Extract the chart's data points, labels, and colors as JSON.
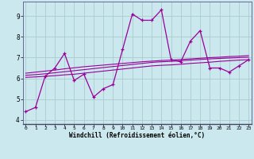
{
  "x": [
    0,
    1,
    2,
    3,
    4,
    5,
    6,
    7,
    8,
    9,
    10,
    11,
    12,
    13,
    14,
    15,
    16,
    17,
    18,
    19,
    20,
    21,
    22,
    23
  ],
  "y_main": [
    4.4,
    4.6,
    6.1,
    6.5,
    7.2,
    5.9,
    6.2,
    5.1,
    5.5,
    5.7,
    7.4,
    9.1,
    8.8,
    8.8,
    9.3,
    6.9,
    6.8,
    7.8,
    8.3,
    6.5,
    6.5,
    6.3,
    6.6,
    6.9
  ],
  "y_trend1": [
    6.05,
    6.07,
    6.1,
    6.13,
    6.17,
    6.2,
    6.25,
    6.3,
    6.35,
    6.4,
    6.45,
    6.5,
    6.55,
    6.6,
    6.63,
    6.65,
    6.68,
    6.72,
    6.75,
    6.78,
    6.82,
    6.85,
    6.88,
    6.9
  ],
  "y_trend2": [
    6.15,
    6.18,
    6.22,
    6.27,
    6.32,
    6.37,
    6.42,
    6.47,
    6.52,
    6.57,
    6.62,
    6.67,
    6.72,
    6.77,
    6.8,
    6.82,
    6.85,
    6.88,
    6.91,
    6.94,
    6.96,
    6.98,
    7.0,
    7.02
  ],
  "y_trend3": [
    6.25,
    6.3,
    6.35,
    6.4,
    6.46,
    6.51,
    6.56,
    6.6,
    6.64,
    6.68,
    6.72,
    6.76,
    6.8,
    6.83,
    6.86,
    6.88,
    6.91,
    6.94,
    6.97,
    7.0,
    7.02,
    7.05,
    7.07,
    7.1
  ],
  "line_color": "#990099",
  "bg_color": "#cce8ef",
  "grid_color": "#aacccc",
  "xlabel": "Windchill (Refroidissement éolien,°C)",
  "yticks": [
    4,
    5,
    6,
    7,
    8,
    9
  ],
  "xticks": [
    0,
    1,
    2,
    3,
    4,
    5,
    6,
    7,
    8,
    9,
    10,
    11,
    12,
    13,
    14,
    15,
    16,
    17,
    18,
    19,
    20,
    21,
    22,
    23
  ],
  "ylim": [
    3.8,
    9.7
  ],
  "xlim": [
    -0.3,
    23.3
  ]
}
